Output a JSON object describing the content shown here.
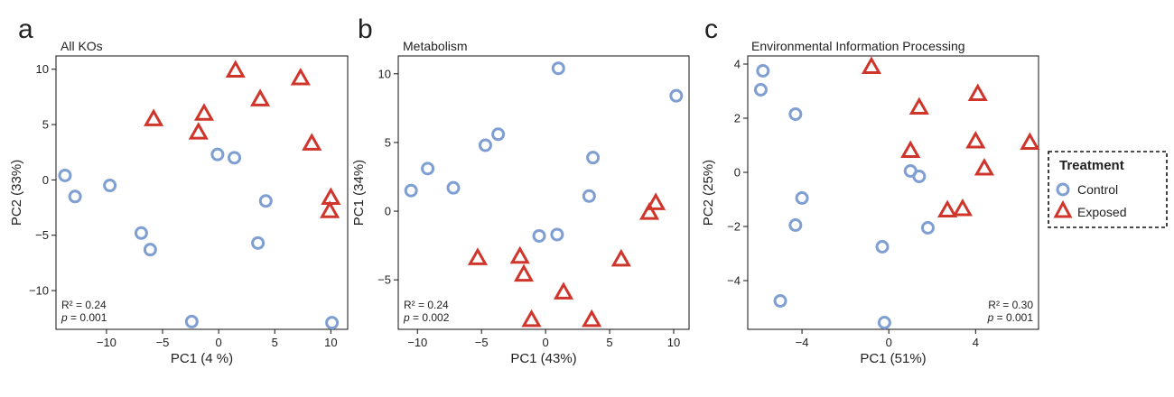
{
  "colors": {
    "control": "#7f9fd3",
    "exposed": "#d0352b"
  },
  "legend": {
    "title": "Treatment",
    "items": [
      {
        "label": "Control",
        "marker": "circle",
        "color": "#7f9fd3"
      },
      {
        "label": "Exposed",
        "marker": "triangle",
        "color": "#d0352b"
      }
    ]
  },
  "chart_data": [
    {
      "type": "scatter",
      "panel_letter": "a",
      "title": "All KOs",
      "xlabel": "PC1 (4  %)",
      "ylabel": "PC2 (33%)",
      "xlim": [
        -14.5,
        11.5
      ],
      "ylim": [
        -13.5,
        11.2
      ],
      "xticks": [
        -10,
        -5,
        0,
        5,
        10
      ],
      "yticks": [
        -10,
        -5,
        0,
        5,
        10
      ],
      "stats": {
        "r2": "R² = 0.24",
        "p_label": "p",
        "p_value": " = 0.001"
      },
      "stats_position": "bottom-left",
      "series": [
        {
          "name": "Control",
          "marker": "circle",
          "x": [
            -13.7,
            -12.8,
            -9.7,
            -6.9,
            -6.1,
            -2.4,
            -0.1,
            1.4,
            3.5,
            4.2,
            10.1
          ],
          "y": [
            0.4,
            -1.5,
            -0.5,
            -4.8,
            -6.3,
            -12.8,
            2.3,
            2.0,
            -5.7,
            -1.9,
            -12.9
          ]
        },
        {
          "name": "Exposed",
          "marker": "triangle",
          "x": [
            -5.8,
            -1.8,
            -1.3,
            1.5,
            3.7,
            7.3,
            8.3,
            10.0,
            9.9
          ],
          "y": [
            5.5,
            4.3,
            6.0,
            9.9,
            7.3,
            9.2,
            3.3,
            -1.6,
            -2.8
          ]
        }
      ]
    },
    {
      "type": "scatter",
      "panel_letter": "b",
      "title": "Metabolism",
      "xlabel": "PC1 (43%)",
      "ylabel": "PC1 (34%)",
      "xlim": [
        -11.5,
        11.2
      ],
      "ylim": [
        -8.6,
        11.3
      ],
      "xticks": [
        -10,
        -5,
        0,
        5,
        10
      ],
      "yticks": [
        -5,
        0,
        5,
        10
      ],
      "stats": {
        "r2": "R² = 0.24",
        "p_label": "p",
        "p_value": " = 0.002"
      },
      "stats_position": "bottom-left",
      "series": [
        {
          "name": "Control",
          "marker": "circle",
          "x": [
            -10.5,
            -9.2,
            -7.2,
            -4.7,
            -3.7,
            -0.5,
            0.9,
            1.0,
            3.4,
            3.7,
            10.2
          ],
          "y": [
            1.5,
            3.1,
            1.7,
            4.8,
            5.6,
            -1.8,
            -1.7,
            10.4,
            1.1,
            3.9,
            8.4
          ]
        },
        {
          "name": "Exposed",
          "marker": "triangle",
          "x": [
            -5.3,
            -2.0,
            -1.7,
            -1.1,
            1.4,
            3.6,
            5.9,
            8.1,
            8.6
          ],
          "y": [
            -3.4,
            -3.3,
            -4.6,
            -7.9,
            -5.9,
            -7.9,
            -3.5,
            -0.1,
            0.6
          ]
        }
      ]
    },
    {
      "type": "scatter",
      "panel_letter": "c",
      "title": "Environmental Information Processing",
      "xlabel": "PC1 (51%)",
      "ylabel": "PC2 (25%)",
      "xlim": [
        -6.5,
        6.9
      ],
      "ylim": [
        -5.8,
        4.3
      ],
      "xticks": [
        -4,
        0,
        4
      ],
      "yticks": [
        -4,
        -2,
        0,
        2,
        4
      ],
      "stats": {
        "r2": "R² = 0.30",
        "p_label": "p",
        "p_value": " = 0.001"
      },
      "stats_position": "bottom-right",
      "series": [
        {
          "name": "Control",
          "marker": "circle",
          "x": [
            -5.9,
            -5.8,
            -5.0,
            -4.3,
            -4.3,
            -4.0,
            -0.3,
            1.0,
            1.4,
            1.8,
            -0.2
          ],
          "y": [
            3.05,
            3.75,
            -4.75,
            2.15,
            -1.95,
            -0.95,
            -2.75,
            0.05,
            -0.15,
            -2.05,
            -5.55
          ]
        },
        {
          "name": "Exposed",
          "marker": "triangle",
          "x": [
            -0.8,
            1.0,
            1.4,
            2.7,
            3.4,
            4.0,
            4.1,
            4.4,
            6.5
          ],
          "y": [
            3.9,
            0.8,
            2.4,
            -1.4,
            -1.35,
            1.15,
            2.9,
            0.15,
            1.1
          ]
        }
      ]
    }
  ]
}
